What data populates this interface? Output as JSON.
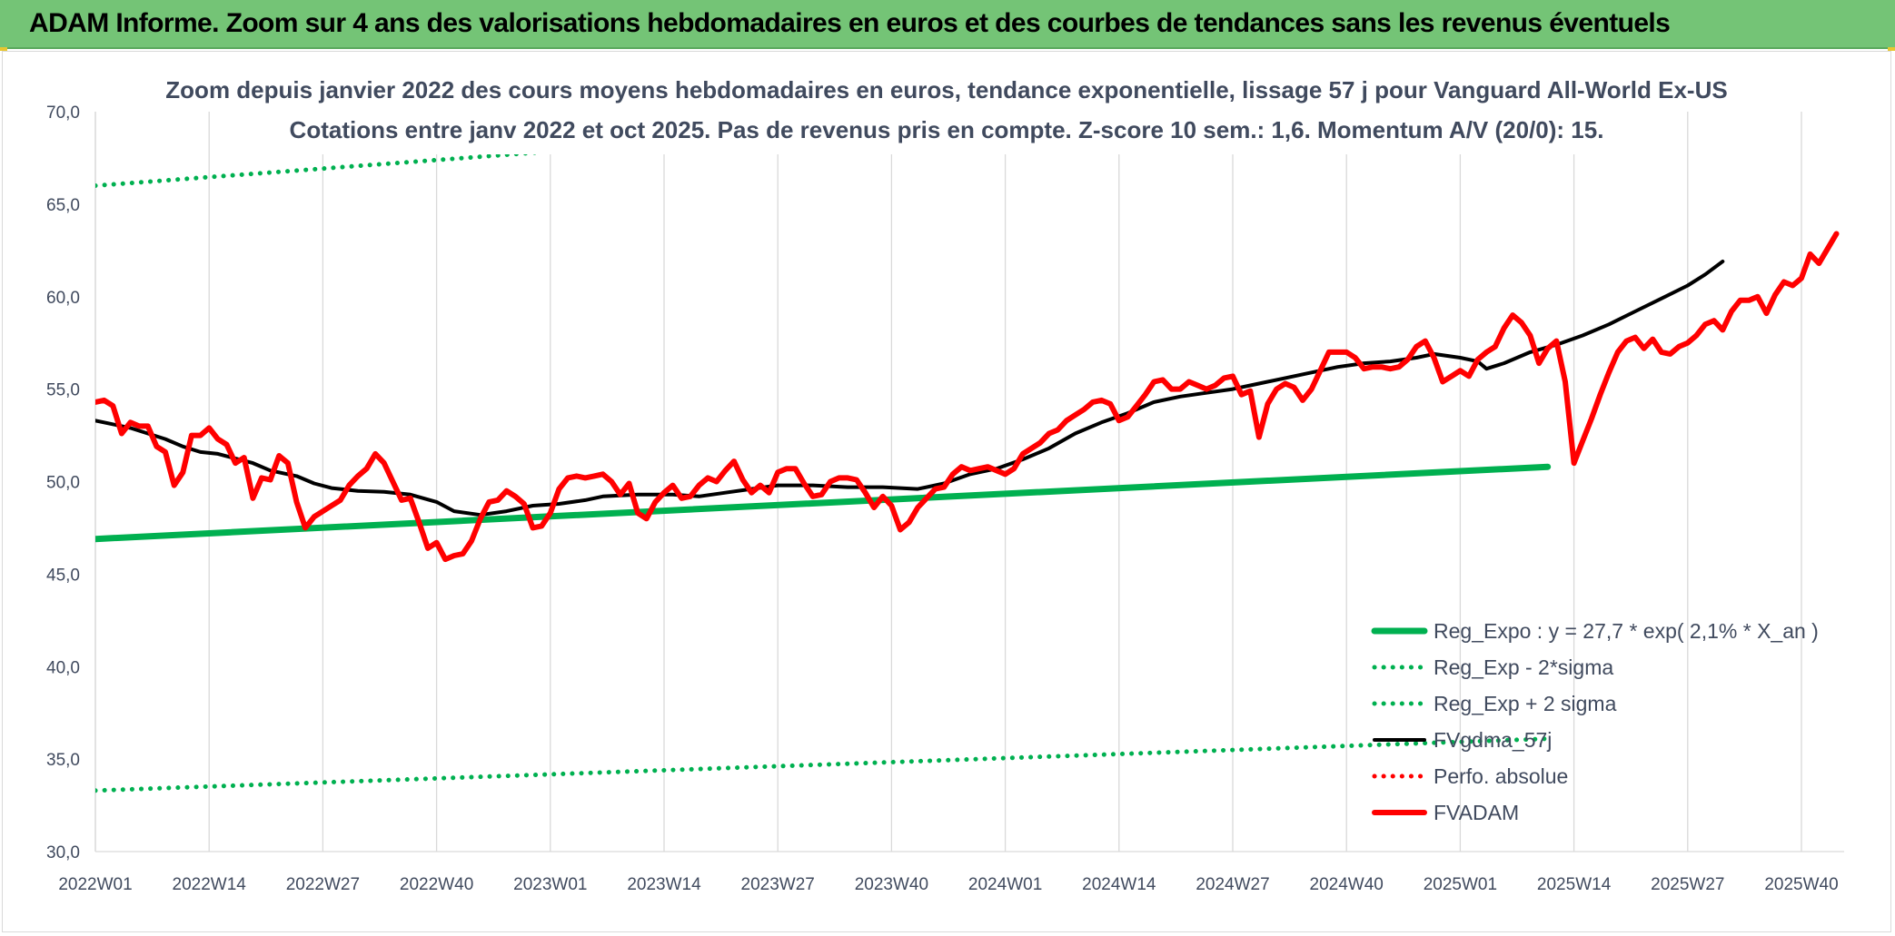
{
  "header": {
    "title": "ADAM Informe. Zoom sur 4 ans des valorisations hebdomadaires en euros et des courbes de tendances sans les revenus éventuels"
  },
  "chart_data": {
    "type": "line",
    "title_line1": "Zoom depuis janvier 2022 des cours moyens hebdomadaires en euros, tendance exponentielle, lissage 57 j pour Vanguard All-World Ex-US",
    "title_line2": "Cotations entre janv 2022 et oct 2025. Pas de revenus pris en compte. Z-score 10 sem.: 1,6. Momentum A/V (20/0): 15.",
    "ylim": [
      30,
      70
    ],
    "yticks": [
      "30,0",
      "35,0",
      "40,0",
      "45,0",
      "50,0",
      "55,0",
      "60,0",
      "65,0",
      "70,0"
    ],
    "x_labels": [
      "2022W01",
      "2022W14",
      "2022W27",
      "2022W40",
      "2023W01",
      "2023W14",
      "2023W27",
      "2023W40",
      "2024W01",
      "2024W14",
      "2024W27",
      "2024W40",
      "2025W01",
      "2025W14",
      "2025W27",
      "2025W40"
    ],
    "grid": "vertical",
    "legend_position": "bottom-right",
    "series": [
      {
        "name": "Reg_Expo : y = 27,7 * exp( 2,1% *  X_an )",
        "style": "solid-thick",
        "color": "#00b050",
        "values": [
          [
            0,
            46.9
          ],
          [
            166,
            50.8
          ]
        ]
      },
      {
        "name": "Reg_Exp - 2*sigma",
        "style": "dotted",
        "color": "#00b050",
        "values": [
          [
            0,
            33.3
          ],
          [
            166,
            36.1
          ]
        ]
      },
      {
        "name": "Reg_Exp + 2 sigma",
        "style": "dotted",
        "color": "#00b050",
        "values": [
          [
            0,
            66.0
          ],
          [
            166,
            71.9
          ]
        ]
      },
      {
        "name": "FVgdma_57j",
        "style": "solid",
        "color": "#000000",
        "values": [
          [
            0,
            53.3
          ],
          [
            4,
            52.9
          ],
          [
            8,
            52.3
          ],
          [
            10,
            51.9
          ],
          [
            12,
            51.6
          ],
          [
            14,
            51.5
          ],
          [
            18,
            51.0
          ],
          [
            20,
            50.6
          ],
          [
            23,
            50.3
          ],
          [
            25,
            49.9
          ],
          [
            27,
            49.65
          ],
          [
            30,
            49.5
          ],
          [
            33,
            49.45
          ],
          [
            36,
            49.3
          ],
          [
            39,
            48.9
          ],
          [
            41,
            48.4
          ],
          [
            44,
            48.2
          ],
          [
            47,
            48.4
          ],
          [
            50,
            48.7
          ],
          [
            53,
            48.8
          ],
          [
            56,
            49.0
          ],
          [
            58,
            49.2
          ],
          [
            62,
            49.3
          ],
          [
            66,
            49.3
          ],
          [
            69,
            49.2
          ],
          [
            72,
            49.4
          ],
          [
            75,
            49.6
          ],
          [
            78,
            49.8
          ],
          [
            82,
            49.8
          ],
          [
            86,
            49.7
          ],
          [
            90,
            49.7
          ],
          [
            94,
            49.6
          ],
          [
            97,
            49.9
          ],
          [
            100,
            50.4
          ],
          [
            103,
            50.7
          ],
          [
            106,
            51.2
          ],
          [
            109,
            51.8
          ],
          [
            112,
            52.6
          ],
          [
            115,
            53.2
          ],
          [
            118,
            53.7
          ],
          [
            121,
            54.3
          ],
          [
            124,
            54.6
          ],
          [
            127,
            54.8
          ],
          [
            130,
            55.0
          ],
          [
            133,
            55.3
          ],
          [
            136,
            55.6
          ],
          [
            139,
            55.9
          ],
          [
            142,
            56.2
          ],
          [
            145,
            56.4
          ],
          [
            148,
            56.5
          ],
          [
            151,
            56.7
          ],
          [
            153,
            56.9
          ],
          [
            156,
            56.7
          ],
          [
            158,
            56.5
          ],
          [
            159,
            56.1
          ],
          [
            161,
            56.4
          ],
          [
            164,
            57.0
          ],
          [
            167,
            57.4
          ],
          [
            170,
            57.9
          ],
          [
            173,
            58.5
          ],
          [
            176,
            59.2
          ],
          [
            179,
            59.9
          ],
          [
            182,
            60.6
          ],
          [
            184,
            61.2
          ],
          [
            186,
            61.9
          ]
        ]
      },
      {
        "name": "Perfo. absolue",
        "style": "dotted",
        "color": "#ff0000",
        "values": []
      },
      {
        "name": "FVADAM",
        "style": "solid-thick",
        "color": "#ff0000",
        "values": [
          [
            0,
            54.3
          ],
          [
            1,
            54.4
          ],
          [
            2,
            54.1
          ],
          [
            3,
            52.6
          ],
          [
            4,
            53.2
          ],
          [
            5,
            53.0
          ],
          [
            6,
            53.0
          ],
          [
            7,
            51.9
          ],
          [
            8,
            51.6
          ],
          [
            9,
            49.8
          ],
          [
            10,
            50.5
          ],
          [
            11,
            52.5
          ],
          [
            12,
            52.5
          ],
          [
            13,
            52.9
          ],
          [
            14,
            52.3
          ],
          [
            15,
            52.0
          ],
          [
            16,
            51.0
          ],
          [
            17,
            51.3
          ],
          [
            18,
            49.1
          ],
          [
            19,
            50.2
          ],
          [
            20,
            50.1
          ],
          [
            21,
            51.4
          ],
          [
            22,
            51.0
          ],
          [
            23,
            48.9
          ],
          [
            24,
            47.5
          ],
          [
            25,
            48.1
          ],
          [
            26,
            48.4
          ],
          [
            27,
            48.7
          ],
          [
            28,
            49.0
          ],
          [
            29,
            49.8
          ],
          [
            30,
            50.3
          ],
          [
            31,
            50.7
          ],
          [
            32,
            51.5
          ],
          [
            33,
            51.0
          ],
          [
            34,
            50.0
          ],
          [
            35,
            49.0
          ],
          [
            36,
            49.1
          ],
          [
            37,
            47.8
          ],
          [
            38,
            46.4
          ],
          [
            39,
            46.7
          ],
          [
            40,
            45.8
          ],
          [
            41,
            46.0
          ],
          [
            42,
            46.1
          ],
          [
            43,
            46.8
          ],
          [
            44,
            48.0
          ],
          [
            45,
            48.9
          ],
          [
            46,
            49.0
          ],
          [
            47,
            49.5
          ],
          [
            48,
            49.2
          ],
          [
            49,
            48.8
          ],
          [
            50,
            47.5
          ],
          [
            51,
            47.6
          ],
          [
            52,
            48.3
          ],
          [
            53,
            49.6
          ],
          [
            54,
            50.2
          ],
          [
            55,
            50.3
          ],
          [
            56,
            50.2
          ],
          [
            57,
            50.3
          ],
          [
            58,
            50.4
          ],
          [
            59,
            50.0
          ],
          [
            60,
            49.3
          ],
          [
            61,
            49.9
          ],
          [
            62,
            48.3
          ],
          [
            63,
            48.0
          ],
          [
            64,
            48.9
          ],
          [
            65,
            49.4
          ],
          [
            66,
            49.8
          ],
          [
            67,
            49.1
          ],
          [
            68,
            49.2
          ],
          [
            69,
            49.8
          ],
          [
            70,
            50.2
          ],
          [
            71,
            50.0
          ],
          [
            72,
            50.6
          ],
          [
            73,
            51.1
          ],
          [
            74,
            50.1
          ],
          [
            75,
            49.4
          ],
          [
            76,
            49.8
          ],
          [
            77,
            49.4
          ],
          [
            78,
            50.5
          ],
          [
            79,
            50.7
          ],
          [
            80,
            50.7
          ],
          [
            81,
            49.9
          ],
          [
            82,
            49.2
          ],
          [
            83,
            49.3
          ],
          [
            84,
            50.0
          ],
          [
            85,
            50.2
          ],
          [
            86,
            50.2
          ],
          [
            87,
            50.1
          ],
          [
            88,
            49.4
          ],
          [
            89,
            48.6
          ],
          [
            90,
            49.2
          ],
          [
            91,
            48.7
          ],
          [
            92,
            47.4
          ],
          [
            93,
            47.8
          ],
          [
            94,
            48.6
          ],
          [
            95,
            49.1
          ],
          [
            96,
            49.6
          ],
          [
            97,
            49.7
          ],
          [
            98,
            50.4
          ],
          [
            99,
            50.8
          ],
          [
            100,
            50.6
          ],
          [
            101,
            50.7
          ],
          [
            102,
            50.8
          ],
          [
            103,
            50.6
          ],
          [
            104,
            50.4
          ],
          [
            105,
            50.7
          ],
          [
            106,
            51.5
          ],
          [
            107,
            51.8
          ],
          [
            108,
            52.1
          ],
          [
            109,
            52.6
          ],
          [
            110,
            52.8
          ],
          [
            111,
            53.3
          ],
          [
            112,
            53.6
          ],
          [
            113,
            53.9
          ],
          [
            114,
            54.3
          ],
          [
            115,
            54.4
          ],
          [
            116,
            54.2
          ],
          [
            117,
            53.3
          ],
          [
            118,
            53.5
          ],
          [
            119,
            54.1
          ],
          [
            120,
            54.7
          ],
          [
            121,
            55.4
          ],
          [
            122,
            55.5
          ],
          [
            123,
            55.0
          ],
          [
            124,
            55.0
          ],
          [
            125,
            55.4
          ],
          [
            126,
            55.2
          ],
          [
            127,
            55.0
          ],
          [
            128,
            55.2
          ],
          [
            129,
            55.6
          ],
          [
            130,
            55.7
          ],
          [
            131,
            54.7
          ],
          [
            132,
            54.9
          ],
          [
            133,
            52.4
          ],
          [
            134,
            54.2
          ],
          [
            135,
            55.0
          ],
          [
            136,
            55.3
          ],
          [
            137,
            55.1
          ],
          [
            138,
            54.4
          ],
          [
            139,
            55.0
          ],
          [
            140,
            56.0
          ],
          [
            141,
            57.0
          ],
          [
            142,
            57.0
          ],
          [
            143,
            57.0
          ],
          [
            144,
            56.7
          ],
          [
            145,
            56.1
          ],
          [
            146,
            56.2
          ],
          [
            147,
            56.2
          ],
          [
            148,
            56.1
          ],
          [
            149,
            56.2
          ],
          [
            150,
            56.6
          ],
          [
            151,
            57.3
          ],
          [
            152,
            57.6
          ],
          [
            153,
            56.7
          ],
          [
            154,
            55.4
          ],
          [
            155,
            55.7
          ],
          [
            156,
            56.0
          ],
          [
            157,
            55.7
          ],
          [
            158,
            56.6
          ],
          [
            159,
            57.0
          ],
          [
            160,
            57.3
          ],
          [
            161,
            58.3
          ],
          [
            162,
            59.0
          ],
          [
            163,
            58.6
          ],
          [
            164,
            57.9
          ],
          [
            165,
            56.4
          ],
          [
            166,
            57.2
          ],
          [
            167,
            57.6
          ],
          [
            168,
            55.4
          ],
          [
            169,
            51.0
          ],
          [
            170,
            52.2
          ],
          [
            171,
            53.4
          ],
          [
            172,
            54.7
          ],
          [
            173,
            55.9
          ],
          [
            174,
            57.0
          ],
          [
            175,
            57.6
          ],
          [
            176,
            57.8
          ],
          [
            177,
            57.2
          ],
          [
            178,
            57.7
          ],
          [
            179,
            57.0
          ],
          [
            180,
            56.9
          ],
          [
            181,
            57.3
          ],
          [
            182,
            57.5
          ],
          [
            183,
            57.9
          ],
          [
            184,
            58.5
          ],
          [
            185,
            58.7
          ],
          [
            186,
            58.2
          ],
          [
            187,
            59.2
          ],
          [
            188,
            59.8
          ],
          [
            189,
            59.8
          ],
          [
            190,
            60.0
          ],
          [
            191,
            59.1
          ],
          [
            192,
            60.1
          ],
          [
            193,
            60.8
          ],
          [
            194,
            60.6
          ],
          [
            195,
            61.0
          ],
          [
            196,
            62.3
          ],
          [
            197,
            61.8
          ],
          [
            198,
            62.6
          ],
          [
            199,
            63.4
          ]
        ]
      }
    ]
  }
}
